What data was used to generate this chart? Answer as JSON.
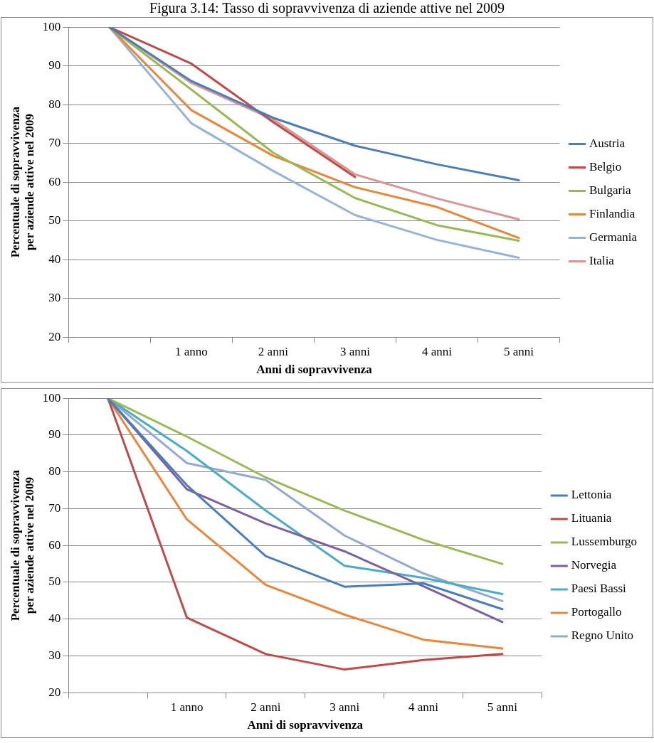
{
  "chart_data": [
    {
      "type": "line",
      "title": "Figura 3.14: Tasso di sopravvivenza di aziende attive nel 2009",
      "xlabel": "Anni di sopravvivenza",
      "ylabel": "Percentuale di sopravvivenza per aziende attive nel 2009",
      "categories": [
        null,
        "1 anno",
        "2 anni",
        "3 anni",
        "4 anni",
        "5 anni"
      ],
      "series": [
        {
          "name": "Austria",
          "color": "#4a7ebb",
          "values": [
            100,
            86.1,
            76.6,
            69.4,
            64.6,
            60.5
          ]
        },
        {
          "name": "Belgio",
          "color": "#be4b48",
          "values": [
            100,
            90.6,
            75.5,
            61.3,
            null,
            null
          ]
        },
        {
          "name": "Bulgaria",
          "color": "#98b954",
          "values": [
            100,
            83.9,
            67.6,
            55.9,
            48.9,
            44.9
          ]
        },
        {
          "name": "Finlandia",
          "color": "#e8863a",
          "values": [
            100,
            78.6,
            66.8,
            58.7,
            53.6,
            45.6
          ]
        },
        {
          "name": "Germania",
          "color": "#95b3d7",
          "values": [
            100,
            75.2,
            62.9,
            51.5,
            45.1,
            40.5
          ]
        },
        {
          "name": "Italia",
          "color": "#d99694",
          "values": [
            100,
            85.6,
            76.2,
            62,
            55.8,
            50.4
          ]
        }
      ],
      "ylim": [
        20,
        100
      ],
      "yticks": [
        20,
        30,
        40,
        50,
        60,
        70,
        80,
        90,
        100
      ],
      "grid": "y",
      "legend": "right",
      "marker": "none",
      "line_style": "solid"
    },
    {
      "type": "line",
      "xlabel": "Anni di sopravvivenza",
      "ylabel": "Percentuale di sopravvivenza per aziende attive nel 2009",
      "categories": [
        null,
        "1 anno",
        "2 anni",
        "3 anni",
        "4 anni",
        "5 anni"
      ],
      "series": [
        {
          "name": "Lettonia",
          "color": "#4a7ebb",
          "values": [
            100,
            76.4,
            57.1,
            48.8,
            49.7,
            42.7
          ]
        },
        {
          "name": "Lituania",
          "color": "#be4b48",
          "values": [
            100,
            40.4,
            30.5,
            26.3,
            28.9,
            30.5
          ]
        },
        {
          "name": "Lussemburgo",
          "color": "#98b954",
          "values": [
            100,
            89.6,
            78.5,
            69.5,
            61.5,
            55
          ]
        },
        {
          "name": "Norvegia",
          "color": "#7d60a0",
          "values": [
            100,
            75.3,
            66,
            58.4,
            48.9,
            39.2
          ]
        },
        {
          "name": "Paesi Bassi",
          "color": "#4bacc6",
          "values": [
            100,
            85.7,
            69.5,
            54.5,
            51.2,
            46.8
          ]
        },
        {
          "name": "Portogallo",
          "color": "#e8863a",
          "values": [
            100,
            67.1,
            49.3,
            41.2,
            34.4,
            32
          ]
        },
        {
          "name": "Regno Unito",
          "color": "#93a9cf",
          "values": [
            100,
            82.4,
            77.8,
            62.7,
            52.4,
            44.9
          ]
        }
      ],
      "ylim": [
        20,
        100
      ],
      "yticks": [
        20,
        30,
        40,
        50,
        60,
        70,
        80,
        90,
        100
      ],
      "grid": "y",
      "legend": "right",
      "marker": "none",
      "line_style": "solid"
    }
  ]
}
